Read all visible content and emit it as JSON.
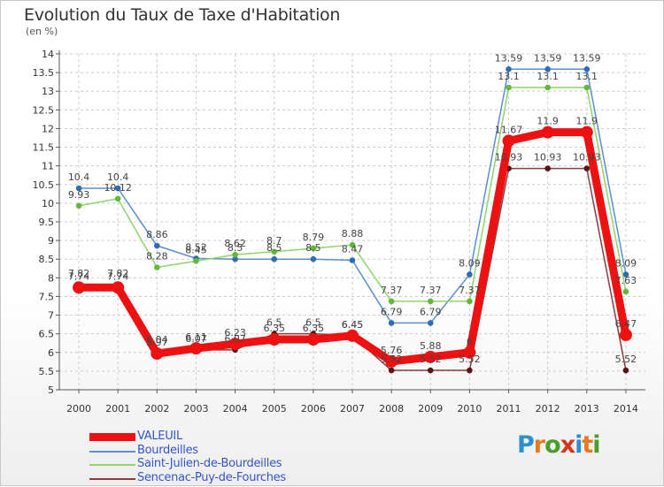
{
  "title": "Evolution du Taux de Taxe d'Habitation",
  "unit_label": "(en %)",
  "logo": {
    "letters": [
      "P",
      "r",
      "o",
      "x",
      "i",
      "t",
      "i"
    ],
    "colors": [
      "#2e8fd0",
      "#e8791c",
      "#4a9e2a",
      "#d6341c",
      "#2e8fd0",
      "#e8791c",
      "#4a9e2a"
    ]
  },
  "chart_data": {
    "type": "line",
    "title": "Evolution du Taux de Taxe d'Habitation",
    "ylabel": "(en %)",
    "xlabel": "",
    "ylim": [
      5,
      14
    ],
    "grid": true,
    "legend_position": "bottom-left",
    "categories": [
      "2000",
      "2001",
      "2002",
      "2003",
      "2004",
      "2005",
      "2006",
      "2007",
      "2008",
      "2009",
      "2010",
      "2011",
      "2012",
      "2013",
      "2014"
    ],
    "y_ticks": [
      "5",
      "5.5",
      "6",
      "6.5",
      "7",
      "7.5",
      "8",
      "8.5",
      "9",
      "9.5",
      "10",
      "10.5",
      "11",
      "11.5",
      "12",
      "12.5",
      "13",
      "13.5",
      "14"
    ],
    "series": [
      {
        "name": "Bourdeilles",
        "color": "#5b8fd0",
        "marker": "#2d6db3",
        "values": [
          10.4,
          10.4,
          8.86,
          8.52,
          8.5,
          8.5,
          8.5,
          8.47,
          6.79,
          6.79,
          8.09,
          13.59,
          13.59,
          13.59,
          8.09
        ],
        "labels": [
          "10.4",
          "10.4",
          "8.86",
          "8.52",
          "8.5",
          "8.5",
          "8.5",
          "8.47",
          "6.79",
          "6.79",
          "8.09",
          "13.59",
          "13.59",
          "13.59",
          "8.09"
        ]
      },
      {
        "name": "Saint-Julien-de-Bourdeilles",
        "color": "#8fd46e",
        "marker": "#62b83a",
        "values": [
          9.93,
          10.12,
          8.28,
          8.45,
          8.62,
          8.7,
          8.79,
          8.88,
          7.37,
          7.37,
          7.37,
          13.1,
          13.1,
          13.1,
          7.63
        ],
        "labels": [
          "9.93",
          "10.12",
          "8.28",
          "8.45",
          "8.62",
          "8.7",
          "8.79",
          "8.88",
          "7.37",
          "7.37",
          "7.37",
          "13.1",
          "13.1",
          "13.1",
          "7.63"
        ]
      },
      {
        "name": "Sencenac-Puy-de-Fourches",
        "color": "#8c3c3c",
        "marker": "#5a1414",
        "values": [
          7.82,
          7.82,
          6.04,
          6.07,
          6.07,
          6.5,
          6.5,
          6.45,
          5.52,
          5.52,
          5.52,
          10.93,
          10.93,
          10.93,
          5.52
        ],
        "labels": [
          "7.82",
          "7.82",
          "6.04",
          "6.07",
          "6.07",
          "6.5",
          "6.5",
          "6.45",
          "5.52",
          "5.52",
          "5.52",
          "10.93",
          "10.93",
          "10.93",
          "5.52"
        ]
      },
      {
        "name": "VALEUIL",
        "color": "#ee1111",
        "marker": "#ee1111",
        "values": [
          7.74,
          7.74,
          5.97,
          6.11,
          6.23,
          6.35,
          6.35,
          6.45,
          5.76,
          5.88,
          6.0,
          11.67,
          11.9,
          11.9,
          6.47
        ],
        "labels": [
          "7.74",
          "7.74",
          "5.97",
          "6.11",
          "6.23",
          "6.35",
          "6.35",
          "6.45",
          "5.76",
          "5.88",
          "6",
          "11.67",
          "11.9",
          "11.9",
          "6.47"
        ]
      }
    ]
  }
}
